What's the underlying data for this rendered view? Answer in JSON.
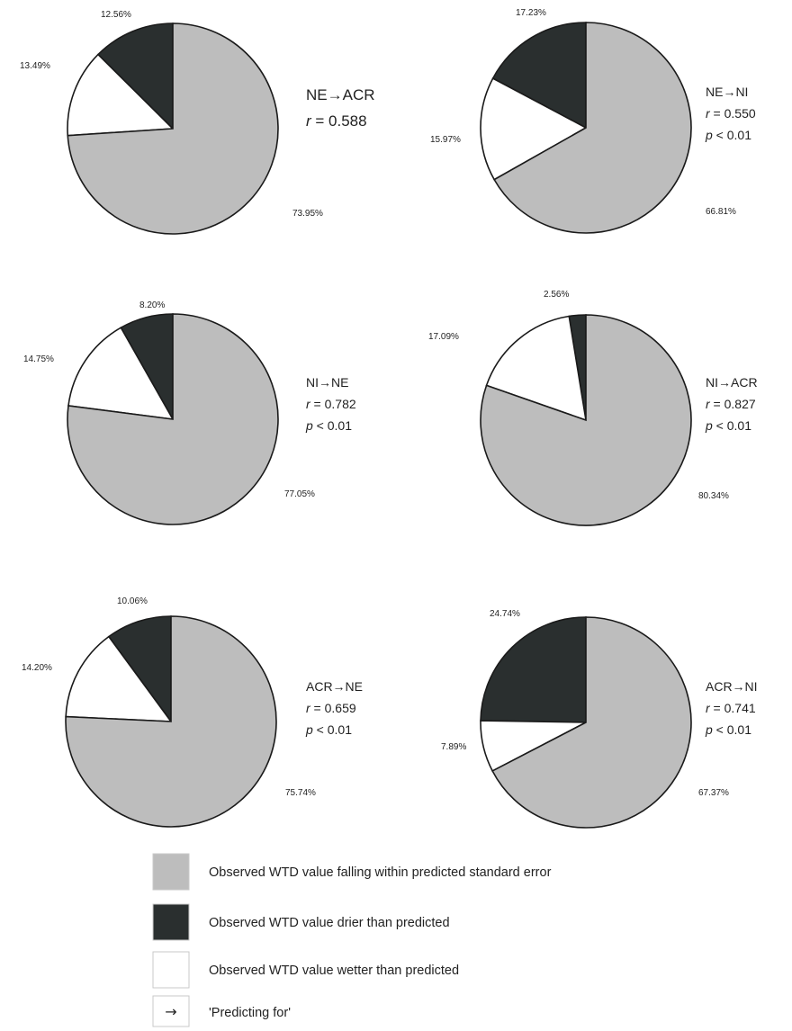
{
  "chart_data": [
    {
      "type": "pie",
      "title": "NE→ACR",
      "r_label": "r",
      "r_value": "= 0.588",
      "p_label": "",
      "p_value": "",
      "slices": [
        {
          "category": "within",
          "value": 73.95,
          "label": "73.95%"
        },
        {
          "category": "drier",
          "value": 12.56,
          "label": "12.56%"
        },
        {
          "category": "wetter",
          "value": 13.49,
          "label": "13.49%"
        }
      ]
    },
    {
      "type": "pie",
      "title": "NE→NI",
      "r_label": "r",
      "r_value": "= 0.550",
      "p_label": "p",
      "p_value": "< 0.01",
      "slices": [
        {
          "category": "within",
          "value": 66.81,
          "label": "66.81%"
        },
        {
          "category": "drier",
          "value": 17.23,
          "label": "17.23%"
        },
        {
          "category": "wetter",
          "value": 15.97,
          "label": "15.97%"
        }
      ]
    },
    {
      "type": "pie",
      "title": "NI→NE",
      "r_label": "r",
      "r_value": "= 0.782",
      "p_label": "p",
      "p_value": "< 0.01",
      "slices": [
        {
          "category": "within",
          "value": 77.05,
          "label": "77.05%"
        },
        {
          "category": "drier",
          "value": 8.2,
          "label": "8.20%"
        },
        {
          "category": "wetter",
          "value": 14.75,
          "label": "14.75%"
        }
      ]
    },
    {
      "type": "pie",
      "title": "NI→ACR",
      "r_label": "r",
      "r_value": "= 0.827",
      "p_label": "p",
      "p_value": "< 0.01",
      "slices": [
        {
          "category": "within",
          "value": 80.34,
          "label": "80.34%"
        },
        {
          "category": "drier",
          "value": 2.56,
          "label": "2.56%"
        },
        {
          "category": "wetter",
          "value": 17.09,
          "label": "17.09%"
        }
      ]
    },
    {
      "type": "pie",
      "title": "ACR→NE",
      "r_label": "r",
      "r_value": "= 0.659",
      "p_label": "p",
      "p_value": "< 0.01",
      "slices": [
        {
          "category": "within",
          "value": 75.74,
          "label": "75.74%"
        },
        {
          "category": "drier",
          "value": 10.06,
          "label": "10.06%"
        },
        {
          "category": "wetter",
          "value": 14.2,
          "label": "14.20%"
        }
      ]
    },
    {
      "type": "pie",
      "title": "ACR→NI",
      "r_label": "r",
      "r_value": "= 0.741",
      "p_label": "p",
      "p_value": "< 0.01",
      "slices": [
        {
          "category": "within",
          "value": 67.37,
          "label": "67.37%"
        },
        {
          "category": "drier",
          "value": 24.74,
          "label": "24.74%"
        },
        {
          "category": "wetter",
          "value": 7.89,
          "label": "7.89%"
        }
      ]
    }
  ],
  "legend": [
    {
      "key": "within",
      "label": "Observed WTD value falling within predicted standard error",
      "color": "#bdbdbd"
    },
    {
      "key": "drier",
      "label": "Observed WTD value drier than predicted",
      "color": "#2a2f2f"
    },
    {
      "key": "wetter",
      "label": "Observed WTD value wetter than predicted",
      "color": "#ffffff"
    },
    {
      "key": "arrow",
      "symbol": "→",
      "label": "'Predicting for'",
      "color": "#ffffff"
    }
  ],
  "colors": {
    "within": "#bdbdbd",
    "drier": "#2a2f2f",
    "wetter": "#ffffff",
    "outline": "#1a1a1a"
  }
}
